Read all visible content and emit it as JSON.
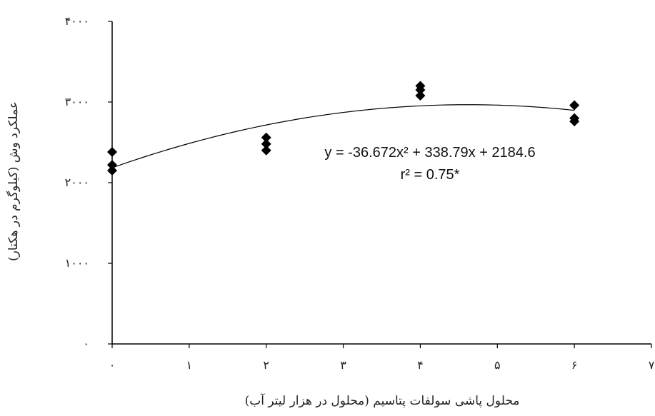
{
  "chart_data": {
    "type": "scatter",
    "xlabel": "محلول پاشی سولفات پتاسیم (محلول در هزار لیتر آب)",
    "ylabel": "عملکرد وش (کیلوگرم در هکتار)",
    "xlim": [
      0,
      7
    ],
    "ylim": [
      0,
      4000
    ],
    "x_ticks": [
      0,
      1,
      2,
      3,
      4,
      5,
      6,
      7
    ],
    "x_tick_labels": [
      "۰",
      "۱",
      "۲",
      "۳",
      "۴",
      "۵",
      "۶",
      "۷"
    ],
    "y_ticks": [
      0,
      1000,
      2000,
      3000,
      4000
    ],
    "y_tick_labels": [
      "۰",
      "۱۰۰۰",
      "۲۰۰۰",
      "۳۰۰۰",
      "۴۰۰۰"
    ],
    "grid": false,
    "series": [
      {
        "marker": "diamond",
        "color": "#000000",
        "points": [
          {
            "x": 0,
            "y": 2380
          },
          {
            "x": 0,
            "y": 2220
          },
          {
            "x": 0,
            "y": 2150
          },
          {
            "x": 2,
            "y": 2560
          },
          {
            "x": 2,
            "y": 2480
          },
          {
            "x": 2,
            "y": 2400
          },
          {
            "x": 4,
            "y": 3200
          },
          {
            "x": 4,
            "y": 3150
          },
          {
            "x": 4,
            "y": 3080
          },
          {
            "x": 6,
            "y": 2960
          },
          {
            "x": 6,
            "y": 2800
          },
          {
            "x": 6,
            "y": 2760
          }
        ]
      }
    ],
    "trendline": {
      "type": "polynomial",
      "coefficients": [
        -36.672,
        338.79,
        2184.6
      ],
      "x_range": [
        0,
        6
      ],
      "color": "#000000"
    },
    "annotations": {
      "equation": "y = -36.672x² + 338.79x + 2184.6",
      "r2": "r² = 0.75*"
    }
  }
}
